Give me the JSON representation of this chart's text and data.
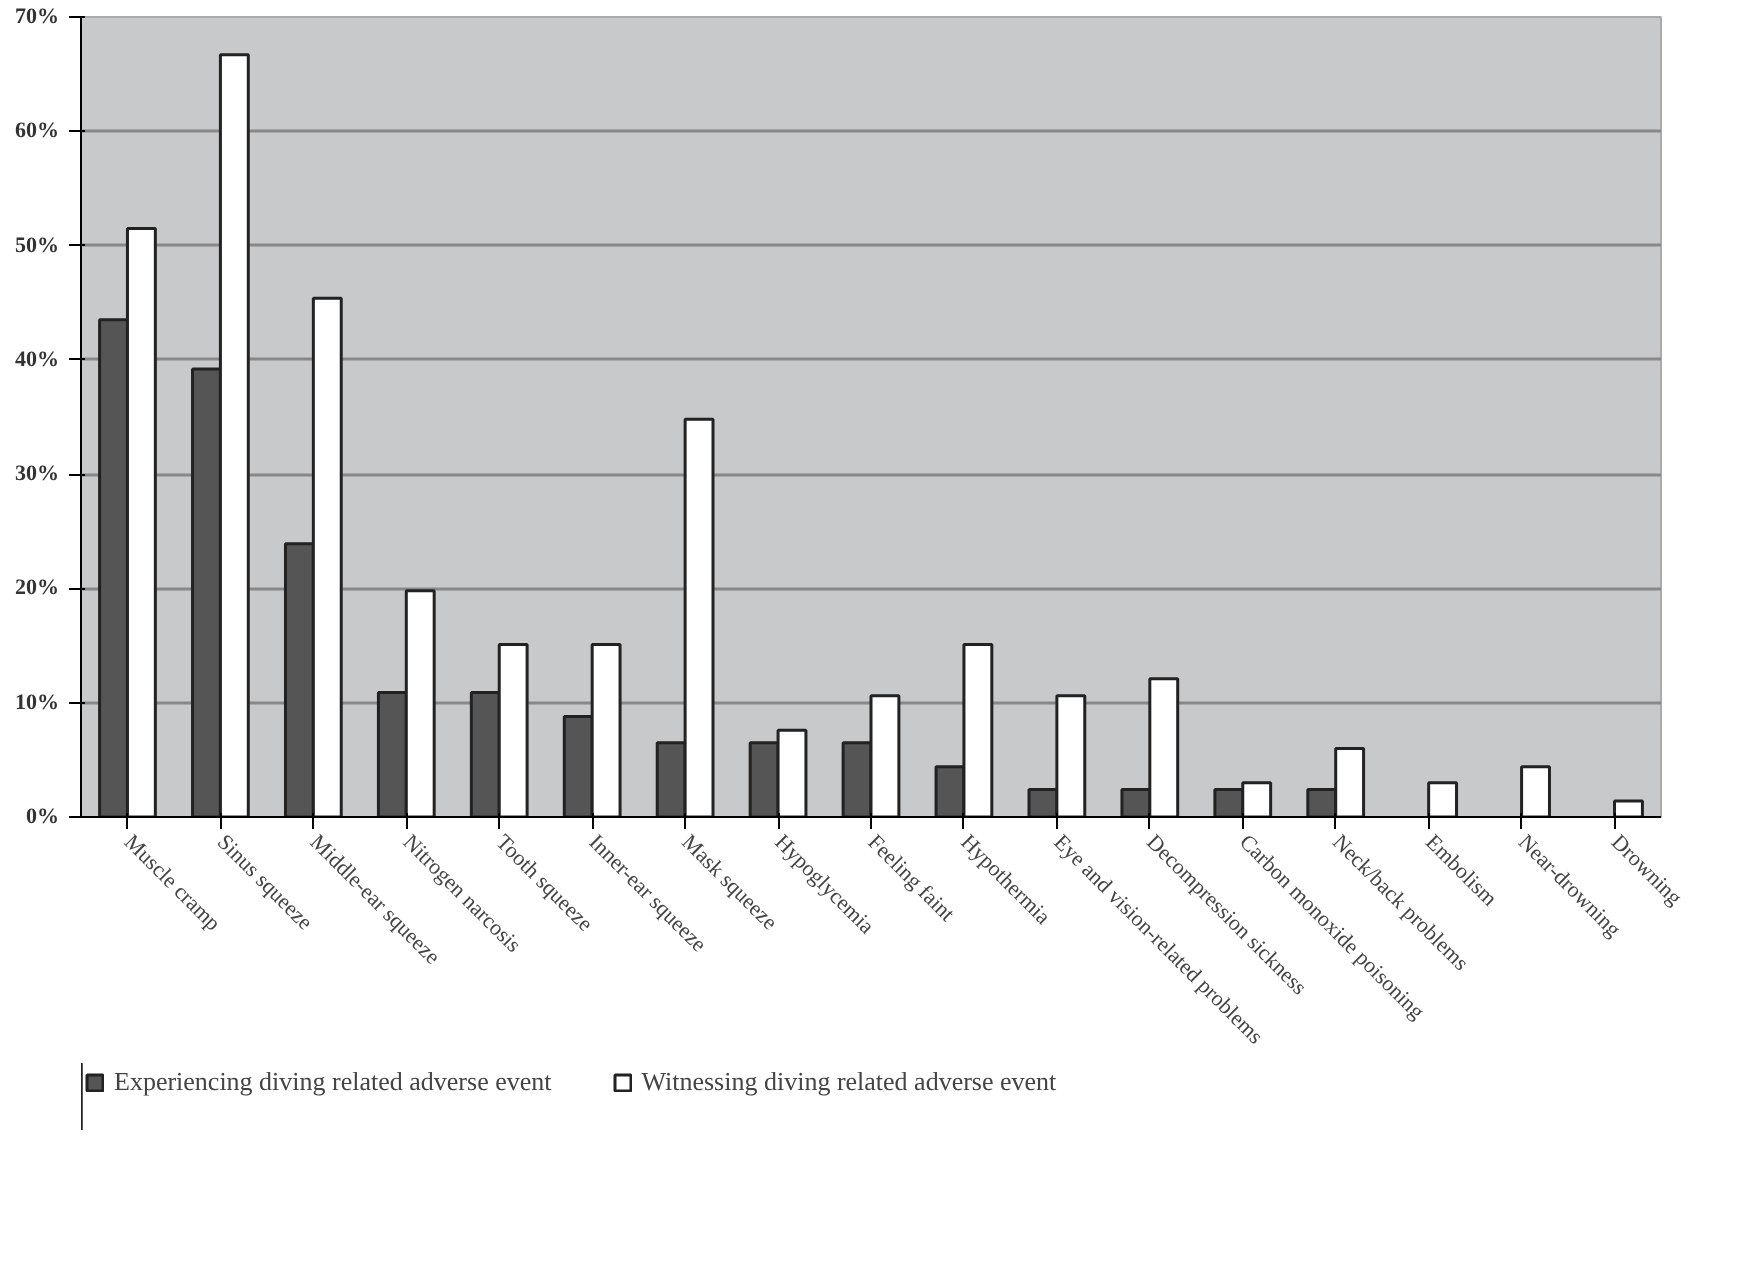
{
  "chart_data": {
    "type": "bar",
    "categories": [
      "Muscle cramp",
      "Sinus squeeze",
      "Middle-ear squeeze",
      "Nitrogen narcosis",
      "Tooth squeeze",
      "Inner-ear squeeze",
      "Mask squeeze",
      "Hypoglycemia",
      "Feeling faint",
      "Hypothermia",
      "Eye and vision-related problems",
      "Decompression sickness",
      "Carbon monoxide poisoning",
      "Neck/back problems",
      "Embolism",
      "Near-drowning",
      "Drowning"
    ],
    "series": [
      {
        "name": "Experiencing diving related adverse event",
        "color": "#555555",
        "values": [
          43.5,
          39.2,
          23.9,
          10.9,
          10.9,
          8.8,
          6.5,
          6.5,
          6.5,
          4.4,
          2.4,
          2.4,
          2.4,
          2.4,
          null,
          null,
          null
        ]
      },
      {
        "name": "Witnessing diving related adverse event",
        "color": "#ffffff",
        "values": [
          51.5,
          66.7,
          45.4,
          19.8,
          15.1,
          15.1,
          34.8,
          7.6,
          10.6,
          15.1,
          10.6,
          12.1,
          3.0,
          6.0,
          3.0,
          4.4,
          1.4
        ]
      }
    ],
    "ylim": [
      0,
      70
    ],
    "yticks": [
      {
        "value": 0,
        "label": "0%"
      },
      {
        "value": 10,
        "label": "10%"
      },
      {
        "value": 20,
        "label": "20%"
      },
      {
        "value": 30,
        "label": "30%"
      },
      {
        "value": 40,
        "label": "40%"
      },
      {
        "value": 50,
        "label": "50%"
      },
      {
        "value": 60,
        "label": "60%"
      },
      {
        "value": 70,
        "label": "70%"
      }
    ],
    "grid": "y",
    "legend": "bottom"
  }
}
